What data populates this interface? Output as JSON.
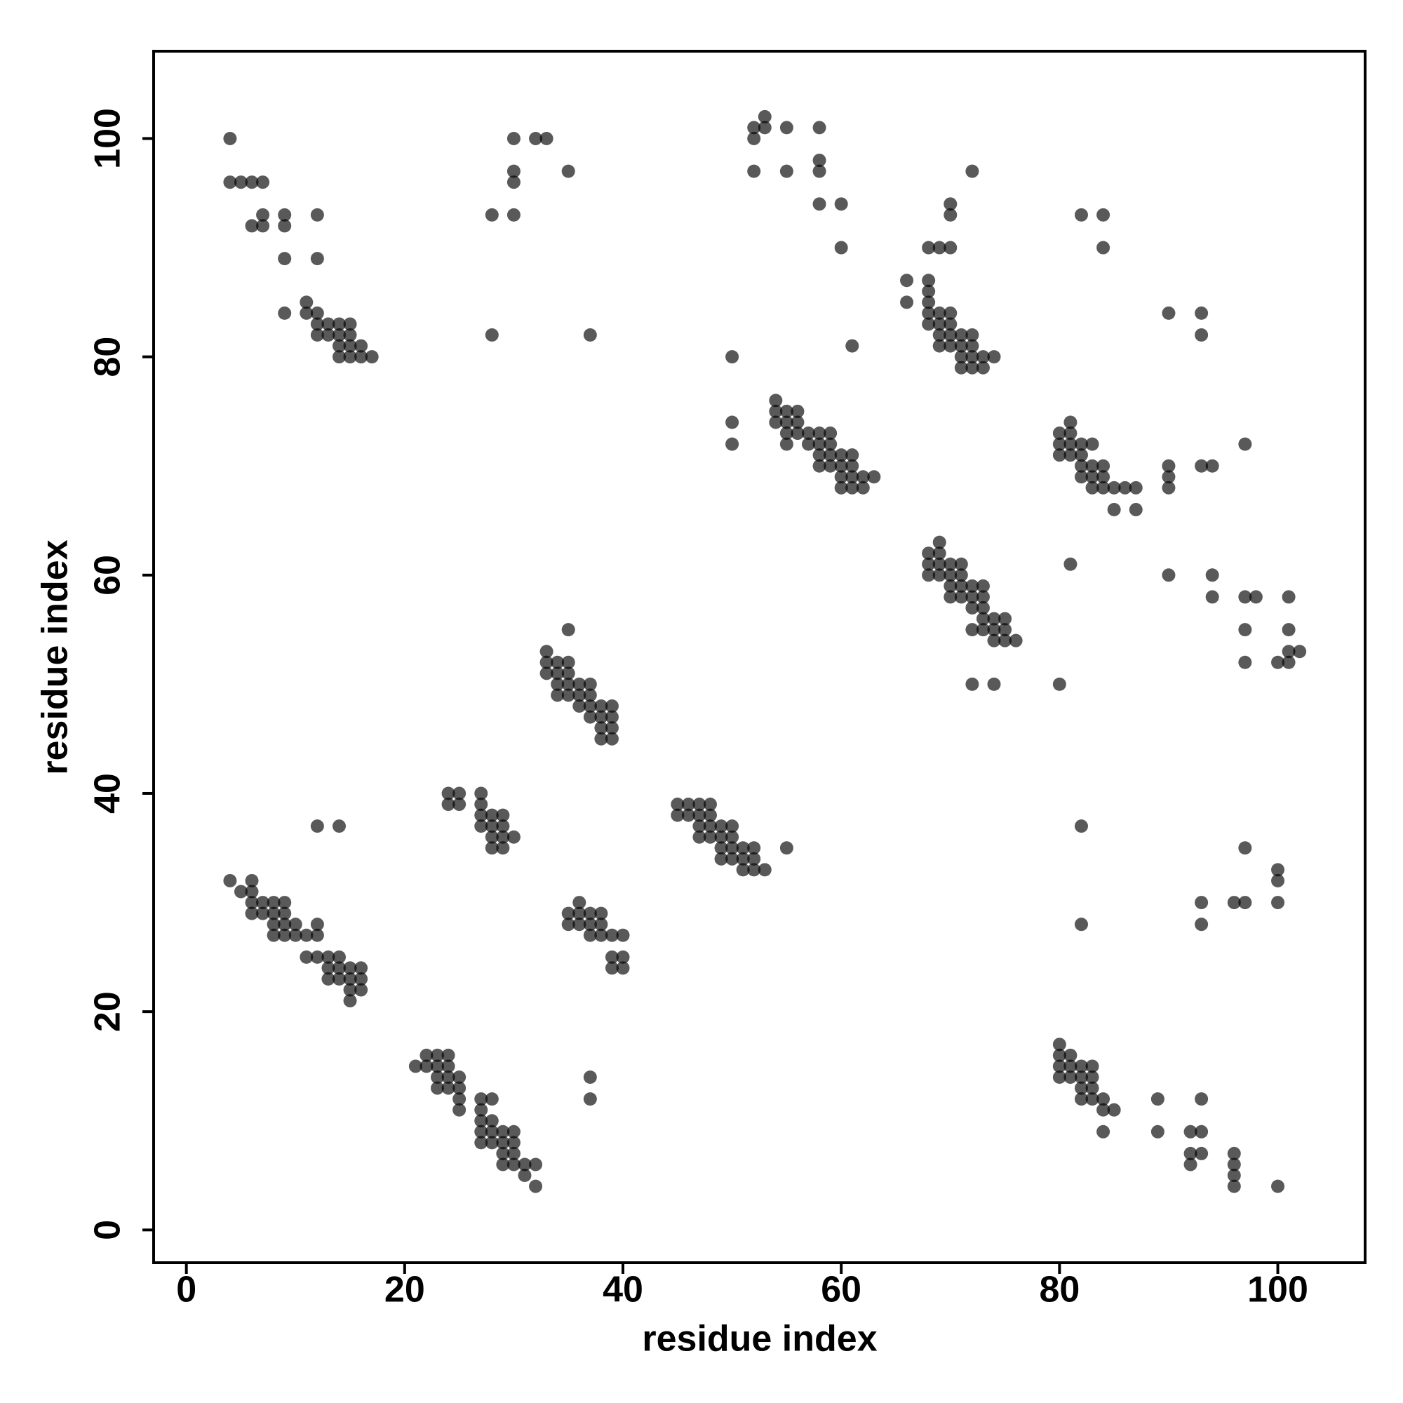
{
  "chart_data": {
    "type": "scatter",
    "xlabel": "residue index",
    "ylabel": "residue index",
    "xlim": [
      -3,
      108
    ],
    "ylim": [
      -3,
      108
    ],
    "xticks": [
      0,
      20,
      40,
      60,
      80,
      100
    ],
    "yticks": [
      0,
      20,
      40,
      60,
      80,
      100
    ],
    "grid": false,
    "series": [
      {
        "color": "#000000",
        "alpha": 0.65,
        "x": [
          4,
          4,
          5,
          6,
          7,
          6,
          7,
          7,
          9,
          9,
          12,
          9,
          12,
          9,
          11,
          11,
          12,
          12,
          13,
          12,
          13,
          14,
          14,
          15,
          15,
          14,
          15,
          16,
          14,
          15,
          16,
          17,
          28,
          30,
          30,
          30,
          30,
          32,
          33,
          35,
          28,
          37,
          52,
          52,
          53,
          53,
          55,
          52,
          55,
          58,
          58,
          58,
          58,
          60,
          60,
          61,
          50,
          50,
          50,
          54,
          54,
          54,
          55,
          55,
          55,
          55,
          56,
          56,
          56,
          57,
          57,
          58,
          58,
          58,
          58,
          59,
          59,
          59,
          59,
          60,
          60,
          60,
          60,
          61,
          61,
          61,
          61,
          62,
          62,
          63,
          66,
          66,
          68,
          69,
          70,
          70,
          70,
          72,
          68,
          68,
          68,
          68,
          68,
          69,
          69,
          69,
          69,
          70,
          70,
          70,
          70,
          71,
          71,
          71,
          72,
          72,
          72,
          72,
          71,
          73,
          73,
          74,
          80,
          80,
          80,
          81,
          81,
          81,
          81,
          82,
          82,
          82,
          82,
          83,
          83,
          83,
          84,
          84,
          84,
          85,
          85,
          86,
          87,
          87,
          83,
          90,
          93,
          93,
          82,
          84,
          84,
          90,
          90,
          90,
          93,
          94,
          97,
          68,
          68,
          68,
          69,
          69,
          69,
          69,
          70,
          70,
          70,
          70,
          71,
          71,
          71,
          71,
          72,
          72,
          72,
          72,
          73,
          73,
          73,
          73,
          73,
          74,
          74,
          74,
          75,
          75,
          75,
          76,
          72,
          74,
          80,
          81,
          90,
          94,
          94,
          97,
          98,
          97,
          97,
          101,
          101,
          101,
          100,
          101,
          102,
          35,
          33,
          33,
          33,
          34,
          34,
          34,
          34,
          35,
          35,
          35,
          35,
          36,
          36,
          36,
          37,
          37,
          37,
          37,
          38,
          38,
          38,
          38,
          39,
          39,
          39,
          39,
          24,
          24,
          25,
          25,
          27,
          27,
          27,
          27,
          28,
          28,
          28,
          28,
          29,
          29,
          29,
          29,
          30,
          45,
          45,
          46,
          46,
          47,
          47,
          47,
          47,
          48,
          48,
          48,
          48,
          49,
          49,
          49,
          49,
          50,
          50,
          50,
          50,
          51,
          51,
          51,
          52,
          52,
          52,
          53,
          55,
          35,
          35,
          36,
          36,
          36,
          37,
          37,
          37,
          38,
          38,
          38,
          39,
          39,
          39,
          40,
          40,
          40,
          4,
          5,
          6,
          6,
          6,
          6,
          7,
          7,
          8,
          8,
          8,
          8,
          9,
          9,
          9,
          9,
          10,
          10,
          11,
          12,
          12,
          11,
          12,
          13,
          13,
          13,
          14,
          14,
          14,
          15,
          15,
          15,
          15,
          16,
          16,
          16,
          12,
          14,
          21,
          22,
          22,
          23,
          23,
          23,
          23,
          24,
          24,
          24,
          24,
          25,
          25,
          25,
          25,
          27,
          27,
          27,
          27,
          27,
          28,
          28,
          28,
          28,
          29,
          29,
          29,
          29,
          30,
          30,
          30,
          30,
          31,
          31,
          32,
          32,
          37,
          37,
          80,
          80,
          80,
          80,
          81,
          81,
          81,
          82,
          82,
          82,
          82,
          83,
          83,
          83,
          83,
          84,
          84,
          84,
          85,
          82,
          82,
          89,
          89,
          92,
          92,
          92,
          93,
          93,
          93,
          96,
          96,
          96,
          96,
          100,
          93,
          93,
          96,
          97,
          97,
          100,
          100,
          100
        ],
        "values": [
          100,
          96,
          96,
          96,
          96,
          92,
          92,
          93,
          93,
          92,
          93,
          89,
          89,
          84,
          85,
          84,
          84,
          83,
          83,
          82,
          82,
          83,
          82,
          83,
          82,
          81,
          81,
          81,
          80,
          80,
          80,
          80,
          93,
          100,
          97,
          96,
          93,
          100,
          100,
          97,
          82,
          82,
          101,
          100,
          102,
          101,
          101,
          97,
          97,
          101,
          98,
          97,
          94,
          94,
          90,
          81,
          80,
          74,
          72,
          76,
          75,
          74,
          75,
          74,
          73,
          72,
          75,
          74,
          73,
          73,
          72,
          73,
          72,
          71,
          70,
          73,
          72,
          71,
          70,
          71,
          70,
          69,
          68,
          71,
          70,
          69,
          68,
          69,
          68,
          69,
          87,
          85,
          90,
          90,
          90,
          94,
          93,
          97,
          87,
          86,
          85,
          84,
          83,
          84,
          83,
          82,
          81,
          84,
          83,
          82,
          81,
          82,
          81,
          80,
          82,
          81,
          80,
          79,
          79,
          80,
          79,
          80,
          73,
          72,
          71,
          74,
          73,
          72,
          71,
          72,
          71,
          70,
          69,
          72,
          70,
          69,
          70,
          69,
          68,
          68,
          66,
          68,
          68,
          66,
          68,
          84,
          84,
          82,
          93,
          93,
          90,
          70,
          69,
          68,
          70,
          70,
          72,
          62,
          61,
          60,
          63,
          62,
          61,
          60,
          61,
          60,
          59,
          58,
          61,
          60,
          59,
          58,
          59,
          58,
          57,
          55,
          59,
          58,
          57,
          56,
          55,
          56,
          55,
          54,
          56,
          55,
          54,
          54,
          50,
          50,
          50,
          61,
          60,
          60,
          58,
          58,
          58,
          55,
          52,
          58,
          55,
          53,
          52,
          52,
          53,
          55,
          53,
          52,
          51,
          52,
          51,
          50,
          49,
          52,
          51,
          50,
          49,
          50,
          49,
          48,
          50,
          49,
          48,
          47,
          48,
          47,
          46,
          45,
          48,
          47,
          46,
          45,
          40,
          39,
          40,
          39,
          40,
          39,
          38,
          37,
          38,
          37,
          36,
          35,
          38,
          37,
          36,
          35,
          36,
          39,
          38,
          39,
          38,
          39,
          38,
          37,
          36,
          39,
          38,
          37,
          36,
          37,
          36,
          35,
          34,
          37,
          36,
          35,
          34,
          35,
          34,
          33,
          35,
          34,
          33,
          33,
          35,
          29,
          28,
          30,
          29,
          28,
          29,
          28,
          27,
          29,
          28,
          27,
          27,
          25,
          24,
          27,
          25,
          24,
          32,
          31,
          32,
          31,
          30,
          29,
          30,
          29,
          30,
          29,
          28,
          27,
          30,
          29,
          28,
          27,
          28,
          27,
          27,
          28,
          27,
          25,
          25,
          25,
          24,
          23,
          25,
          24,
          23,
          24,
          23,
          22,
          21,
          24,
          23,
          22,
          37,
          37,
          15,
          16,
          15,
          16,
          15,
          14,
          13,
          16,
          15,
          14,
          13,
          14,
          13,
          12,
          11,
          12,
          11,
          10,
          9,
          8,
          12,
          10,
          9,
          8,
          9,
          8,
          7,
          6,
          9,
          8,
          7,
          6,
          6,
          5,
          6,
          4,
          14,
          12,
          17,
          16,
          15,
          14,
          16,
          15,
          14,
          15,
          14,
          13,
          12,
          15,
          14,
          13,
          12,
          12,
          11,
          9,
          11,
          37,
          28,
          12,
          9,
          9,
          7,
          6,
          12,
          9,
          7,
          7,
          6,
          5,
          4,
          4,
          30,
          28,
          30,
          30,
          35,
          33,
          32,
          30
        ]
      }
    ]
  }
}
